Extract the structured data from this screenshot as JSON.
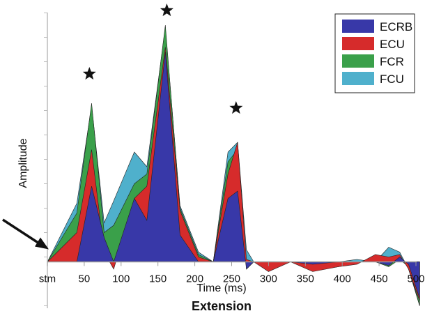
{
  "chart_data": {
    "type": "area",
    "title": "Extension",
    "xlabel": "Time (ms)",
    "ylabel": "Amplitude",
    "xlim": [
      0,
      500
    ],
    "ylim": [
      -1.9,
      10.5
    ],
    "x_ticks": [
      {
        "value": 0,
        "label": "stm"
      },
      {
        "value": 50,
        "label": "50"
      },
      {
        "value": 100,
        "label": "100"
      },
      {
        "value": 150,
        "label": "150"
      },
      {
        "value": 200,
        "label": "200"
      },
      {
        "value": 250,
        "label": "250"
      },
      {
        "value": 300,
        "label": "300"
      },
      {
        "value": 350,
        "label": "350"
      },
      {
        "value": 400,
        "label": "400"
      },
      {
        "value": 450,
        "label": "450"
      },
      {
        "value": 500,
        "label": "500"
      }
    ],
    "grid": false,
    "legend_position": "top-right",
    "series": [
      {
        "name": "FCU",
        "color": "#4fb0cc",
        "x": [
          0,
          40,
          60,
          77,
          90,
          118,
          135,
          160,
          180,
          205,
          225,
          245,
          258,
          270,
          280,
          300,
          330,
          360,
          395,
          420,
          445,
          463,
          478,
          490,
          505
        ],
        "y": [
          0,
          2.4,
          6.4,
          1.6,
          2.5,
          4.5,
          3.9,
          9.6,
          2.3,
          0.4,
          0,
          4.5,
          4.9,
          0.5,
          0,
          0,
          0,
          0,
          0,
          0.1,
          0,
          0.6,
          0.4,
          -0.3,
          -1.8
        ]
      },
      {
        "name": "FCR",
        "color": "#3aa04a",
        "x": [
          0,
          40,
          60,
          77,
          90,
          118,
          135,
          160,
          180,
          205,
          225,
          245,
          258,
          270,
          280,
          300,
          330,
          360,
          395,
          420,
          445,
          463,
          478,
          490,
          505
        ],
        "y": [
          0,
          2,
          6.5,
          1.2,
          1.5,
          3.2,
          3.6,
          9.7,
          2.2,
          0.3,
          0,
          4.1,
          4.6,
          -0.3,
          0,
          -0.2,
          0,
          -0.35,
          -0.2,
          0,
          0,
          -0.2,
          0.1,
          -0.2,
          -1.8
        ]
      },
      {
        "name": "ECU",
        "color": "#d62b2b",
        "x": [
          0,
          40,
          60,
          77,
          90,
          118,
          135,
          160,
          180,
          205,
          225,
          245,
          258,
          270,
          280,
          300,
          330,
          360,
          395,
          420,
          445,
          463,
          478,
          490,
          505
        ],
        "y": [
          0,
          1.2,
          4.6,
          0.4,
          -0.3,
          2.6,
          3.1,
          8.8,
          2.1,
          0.2,
          0,
          3.6,
          4.9,
          0.1,
          0,
          -0.4,
          0,
          -0.4,
          -0.2,
          -0.1,
          0.3,
          0.2,
          0.3,
          -0.3,
          -1.6
        ]
      },
      {
        "name": "ECRB",
        "color": "#3838a8",
        "x": [
          0,
          40,
          60,
          77,
          90,
          118,
          135,
          160,
          180,
          205,
          225,
          245,
          258,
          270,
          280,
          300,
          330,
          360,
          395,
          420,
          445,
          463,
          478,
          490,
          505
        ],
        "y": [
          0,
          0,
          3.1,
          1.0,
          0,
          2.6,
          1.7,
          8.6,
          1.1,
          0,
          0,
          2.6,
          2.9,
          -0.3,
          0,
          0,
          0,
          -0.1,
          0,
          0,
          0,
          -0.15,
          0.2,
          -0.1,
          -1.5
        ]
      }
    ],
    "legend_order": [
      "ECRB",
      "ECU",
      "FCR",
      "FCU"
    ],
    "annotations": [
      {
        "type": "star",
        "x": 57,
        "y": 7.7
      },
      {
        "type": "star",
        "x": 162,
        "y": 10.3
      },
      {
        "type": "star",
        "x": 256,
        "y": 6.3
      },
      {
        "type": "arrow",
        "x": 0,
        "y": 0.8
      }
    ]
  }
}
